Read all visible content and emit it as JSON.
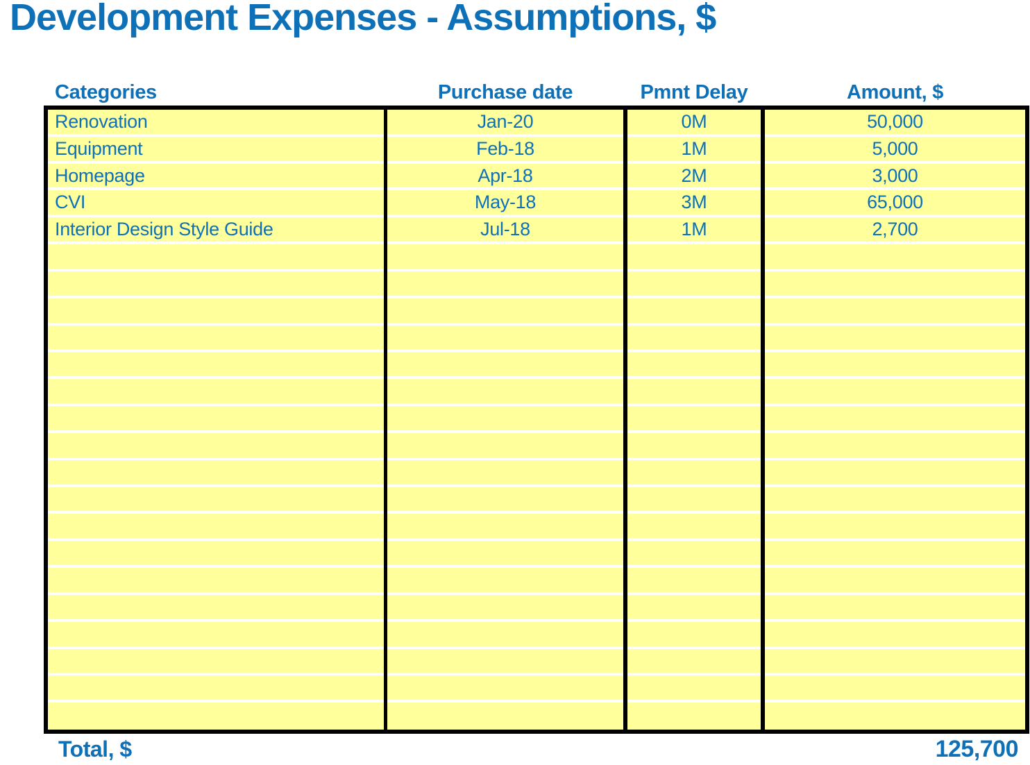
{
  "page": {
    "title": "Development Expenses - Assumptions, $"
  },
  "colors": {
    "accent_blue": "#0E71B8",
    "cell_yellow": "#FFFF9C",
    "border_black": "#000000",
    "separator_white": "#FFFFFF"
  },
  "table": {
    "columns": [
      {
        "label": "Categories",
        "align": "left"
      },
      {
        "label": "Purchase date",
        "align": "center"
      },
      {
        "label": "Pmnt Delay",
        "align": "center"
      },
      {
        "label": "Amount, $",
        "align": "center"
      }
    ],
    "rows": [
      {
        "category": "Renovation",
        "purchase_date": "Jan-20",
        "pmnt_delay": "0M",
        "amount": "50,000"
      },
      {
        "category": "Equipment",
        "purchase_date": "Feb-18",
        "pmnt_delay": "1M",
        "amount": "5,000"
      },
      {
        "category": "Homepage",
        "purchase_date": "Apr-18",
        "pmnt_delay": "2M",
        "amount": "3,000"
      },
      {
        "category": "CVI",
        "purchase_date": "May-18",
        "pmnt_delay": "3M",
        "amount": "65,000"
      },
      {
        "category": "Interior Design Style Guide",
        "purchase_date": "Jul-18",
        "pmnt_delay": "1M",
        "amount": "2,700"
      }
    ],
    "empty_row_count": 18,
    "total_row_count": 23
  },
  "footer": {
    "total_label": "Total, $",
    "total_value": "125,700"
  }
}
